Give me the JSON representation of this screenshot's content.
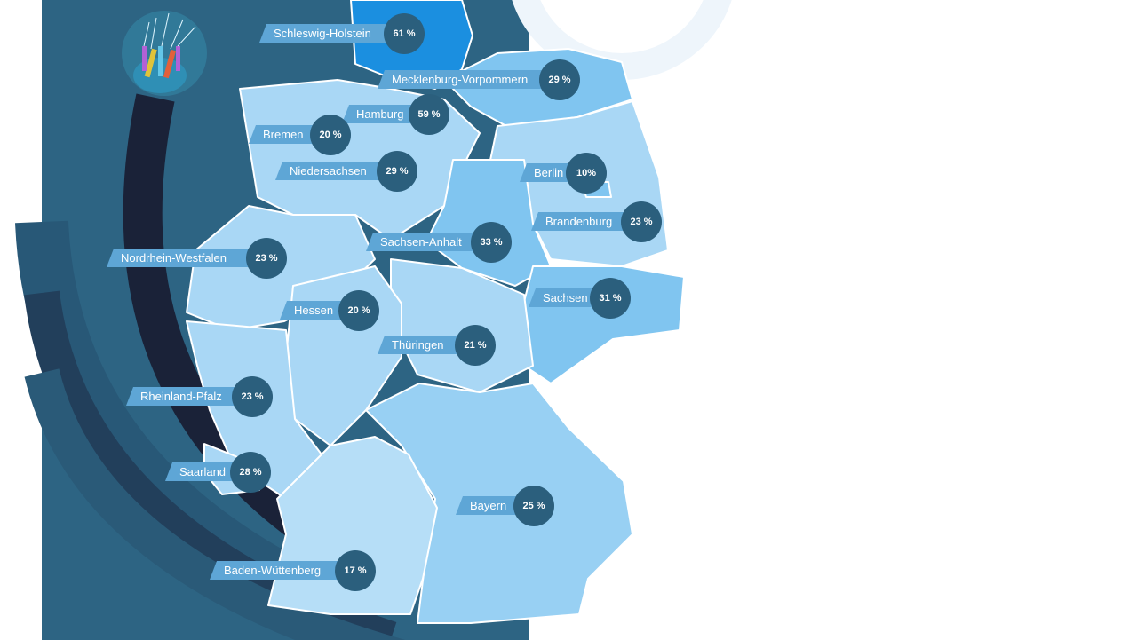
{
  "colors": {
    "panel": "#2d6483",
    "cable": "#1a2238",
    "region_light": "#a9d7f5",
    "region_mid": "#80c5f0",
    "region_high": "#1b8fe0",
    "label_bg": "#5ea6d6",
    "badge_bg": "#2b5f7d"
  },
  "icons": {
    "cable": "fiber-optic-cable-icon"
  },
  "map": {
    "regions": [
      {
        "name": "Schleswig-Holstein",
        "value": "61 %"
      },
      {
        "name": "Mecklenburg-Vorpommern",
        "value": "29 %"
      },
      {
        "name": "Hamburg",
        "value": "59 %"
      },
      {
        "name": "Bremen",
        "value": "20 %"
      },
      {
        "name": "Niedersachsen",
        "value": "29 %"
      },
      {
        "name": "Berlin",
        "value": "10%"
      },
      {
        "name": "Brandenburg",
        "value": "23 %"
      },
      {
        "name": "Sachsen-Anhalt",
        "value": "33 %"
      },
      {
        "name": "Nordrhein-Westfalen",
        "value": "23 %"
      },
      {
        "name": "Sachsen",
        "value": "31 %"
      },
      {
        "name": "Hessen",
        "value": "20 %"
      },
      {
        "name": "Thüringen",
        "value": "21 %"
      },
      {
        "name": "Rheinland-Pfalz",
        "value": "23 %"
      },
      {
        "name": "Saarland",
        "value": "28 %"
      },
      {
        "name": "Bayern",
        "value": "25 %"
      },
      {
        "name": "Baden-Wüttenberg",
        "value": "17 %"
      }
    ]
  }
}
